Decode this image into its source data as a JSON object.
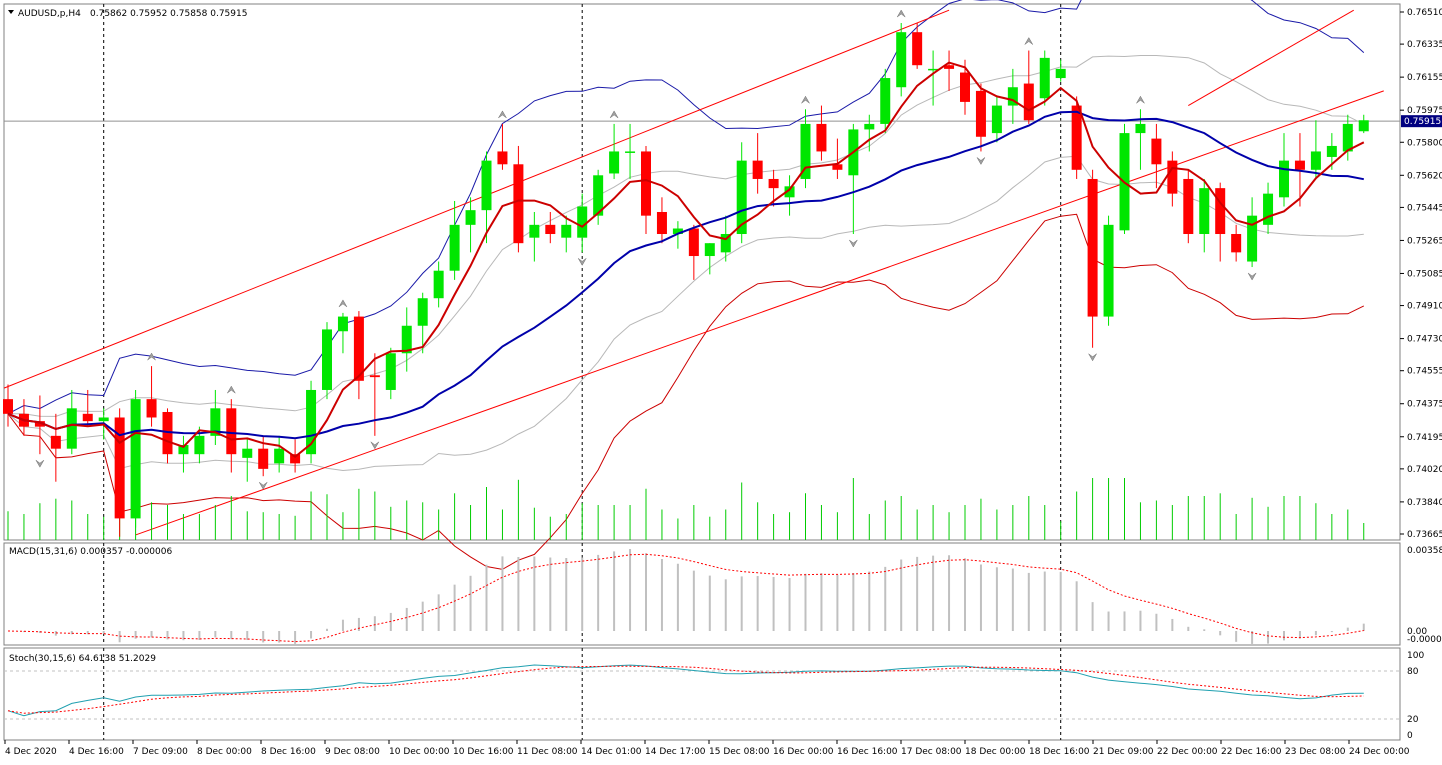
{
  "main_label": {
    "symbol": "AUDUSD,p,H4",
    "ohlc": "0.75862 0.75952 0.75858 0.75915"
  },
  "macd_label": "MACD(15,31,6) 0.000357 -0.000006",
  "stoch_label": "Stoch(30,15,6) 64.6138 51.2029",
  "price_axis": [
    "0.76510",
    "0.76335",
    "0.76155",
    "0.75975",
    "0.75800",
    "0.75620",
    "0.75445",
    "0.75265",
    "0.75085",
    "0.74910",
    "0.74730",
    "0.74555",
    "0.74375",
    "0.74195",
    "0.74020",
    "0.73840",
    "0.73665"
  ],
  "current_price": "0.75915",
  "macd_axis": [
    "0.003587",
    "0.00",
    "-0.000059"
  ],
  "stoch_axis": [
    "100",
    "80",
    "20",
    "0"
  ],
  "time_axis": [
    "4 Dec 2020",
    "4 Dec 16:00",
    "7 Dec 09:00",
    "8 Dec 00:00",
    "8 Dec 16:00",
    "9 Dec 08:00",
    "10 Dec 00:00",
    "10 Dec 16:00",
    "11 Dec 08:00",
    "14 Dec 01:00",
    "14 Dec 17:00",
    "15 Dec 08:00",
    "16 Dec 00:00",
    "16 Dec 16:00",
    "17 Dec 08:00",
    "18 Dec 00:00",
    "18 Dec 16:00",
    "21 Dec 09:00",
    "22 Dec 00:00",
    "22 Dec 16:00",
    "23 Dec 08:00",
    "24 Dec 00:00"
  ],
  "colors": {
    "bull": "#00e600",
    "bear": "#ff0000",
    "ma_fast": "#cc0000",
    "ma_slow": "#0000aa",
    "bb_upper": "#1a1aa8",
    "bb_lower": "#cc0000",
    "bb_inner": "#b8b8b8",
    "channel": "#ff0000",
    "volume": "#00cc00",
    "macd_hist": "#c0c0c0",
    "macd_signal": "#ff0000",
    "stoch_main": "#20a0b0",
    "stoch_signal": "#ff0000"
  },
  "chart_data": {
    "type": "candlestick",
    "symbol": "AUDUSD,p",
    "timeframe": "H4",
    "price_range": [
      0.73665,
      0.7651
    ],
    "candles": [
      {
        "o": 0.744,
        "h": 0.7448,
        "l": 0.7425,
        "c": 0.7432
      },
      {
        "o": 0.7432,
        "h": 0.744,
        "l": 0.742,
        "c": 0.7425
      },
      {
        "o": 0.7428,
        "h": 0.7442,
        "l": 0.741,
        "c": 0.7425
      },
      {
        "o": 0.742,
        "h": 0.7432,
        "l": 0.7395,
        "c": 0.7413
      },
      {
        "o": 0.7413,
        "h": 0.7445,
        "l": 0.741,
        "c": 0.7435
      },
      {
        "o": 0.7432,
        "h": 0.7445,
        "l": 0.7425,
        "c": 0.7428
      },
      {
        "o": 0.7428,
        "h": 0.7435,
        "l": 0.7418,
        "c": 0.743
      },
      {
        "o": 0.743,
        "h": 0.7435,
        "l": 0.7365,
        "c": 0.7375
      },
      {
        "o": 0.7375,
        "h": 0.7445,
        "l": 0.737,
        "c": 0.744
      },
      {
        "o": 0.744,
        "h": 0.7458,
        "l": 0.7425,
        "c": 0.743
      },
      {
        "o": 0.7433,
        "h": 0.7435,
        "l": 0.7405,
        "c": 0.741
      },
      {
        "o": 0.741,
        "h": 0.742,
        "l": 0.74,
        "c": 0.7415
      },
      {
        "o": 0.741,
        "h": 0.7425,
        "l": 0.7405,
        "c": 0.742
      },
      {
        "o": 0.742,
        "h": 0.7445,
        "l": 0.7415,
        "c": 0.7435
      },
      {
        "o": 0.7435,
        "h": 0.744,
        "l": 0.74,
        "c": 0.741
      },
      {
        "o": 0.7408,
        "h": 0.7418,
        "l": 0.7395,
        "c": 0.7413
      },
      {
        "o": 0.7413,
        "h": 0.742,
        "l": 0.7398,
        "c": 0.7402
      },
      {
        "o": 0.7405,
        "h": 0.742,
        "l": 0.74,
        "c": 0.7413
      },
      {
        "o": 0.741,
        "h": 0.7418,
        "l": 0.74,
        "c": 0.7405
      },
      {
        "o": 0.741,
        "h": 0.745,
        "l": 0.7405,
        "c": 0.7445
      },
      {
        "o": 0.7445,
        "h": 0.7482,
        "l": 0.744,
        "c": 0.7478
      },
      {
        "o": 0.7477,
        "h": 0.7487,
        "l": 0.7465,
        "c": 0.7485
      },
      {
        "o": 0.7485,
        "h": 0.7488,
        "l": 0.744,
        "c": 0.745
      },
      {
        "o": 0.7453,
        "h": 0.7465,
        "l": 0.742,
        "c": 0.7452
      },
      {
        "o": 0.7445,
        "h": 0.7468,
        "l": 0.744,
        "c": 0.7465
      },
      {
        "o": 0.7465,
        "h": 0.749,
        "l": 0.7455,
        "c": 0.748
      },
      {
        "o": 0.748,
        "h": 0.7498,
        "l": 0.7465,
        "c": 0.7495
      },
      {
        "o": 0.7495,
        "h": 0.7515,
        "l": 0.749,
        "c": 0.751
      },
      {
        "o": 0.751,
        "h": 0.7548,
        "l": 0.7505,
        "c": 0.7535
      },
      {
        "o": 0.7535,
        "h": 0.755,
        "l": 0.752,
        "c": 0.7543
      },
      {
        "o": 0.7543,
        "h": 0.7575,
        "l": 0.7525,
        "c": 0.757
      },
      {
        "o": 0.7575,
        "h": 0.759,
        "l": 0.7565,
        "c": 0.7568
      },
      {
        "o": 0.7568,
        "h": 0.7578,
        "l": 0.752,
        "c": 0.7525
      },
      {
        "o": 0.7528,
        "h": 0.7542,
        "l": 0.7515,
        "c": 0.7535
      },
      {
        "o": 0.7535,
        "h": 0.7542,
        "l": 0.7525,
        "c": 0.753
      },
      {
        "o": 0.7528,
        "h": 0.754,
        "l": 0.752,
        "c": 0.7535
      },
      {
        "o": 0.7528,
        "h": 0.7552,
        "l": 0.752,
        "c": 0.7545
      },
      {
        "o": 0.754,
        "h": 0.7565,
        "l": 0.7535,
        "c": 0.7562
      },
      {
        "o": 0.7563,
        "h": 0.759,
        "l": 0.756,
        "c": 0.7575
      },
      {
        "o": 0.7575,
        "h": 0.759,
        "l": 0.756,
        "c": 0.7575
      },
      {
        "o": 0.7575,
        "h": 0.7578,
        "l": 0.753,
        "c": 0.754
      },
      {
        "o": 0.7542,
        "h": 0.755,
        "l": 0.7525,
        "c": 0.753
      },
      {
        "o": 0.753,
        "h": 0.7537,
        "l": 0.7522,
        "c": 0.7533
      },
      {
        "o": 0.7533,
        "h": 0.7535,
        "l": 0.7505,
        "c": 0.7518
      },
      {
        "o": 0.7518,
        "h": 0.7525,
        "l": 0.7508,
        "c": 0.7525
      },
      {
        "o": 0.752,
        "h": 0.754,
        "l": 0.7515,
        "c": 0.753
      },
      {
        "o": 0.753,
        "h": 0.758,
        "l": 0.7525,
        "c": 0.757
      },
      {
        "o": 0.757,
        "h": 0.7585,
        "l": 0.7552,
        "c": 0.756
      },
      {
        "o": 0.756,
        "h": 0.7565,
        "l": 0.7545,
        "c": 0.7555
      },
      {
        "o": 0.755,
        "h": 0.7562,
        "l": 0.754,
        "c": 0.7556
      },
      {
        "o": 0.756,
        "h": 0.7598,
        "l": 0.7555,
        "c": 0.759
      },
      {
        "o": 0.759,
        "h": 0.76,
        "l": 0.757,
        "c": 0.7575
      },
      {
        "o": 0.7568,
        "h": 0.7582,
        "l": 0.756,
        "c": 0.7565
      },
      {
        "o": 0.7562,
        "h": 0.759,
        "l": 0.753,
        "c": 0.7587
      },
      {
        "o": 0.7587,
        "h": 0.7595,
        "l": 0.7575,
        "c": 0.759
      },
      {
        "o": 0.759,
        "h": 0.762,
        "l": 0.7585,
        "c": 0.7615
      },
      {
        "o": 0.761,
        "h": 0.7645,
        "l": 0.7605,
        "c": 0.764
      },
      {
        "o": 0.764,
        "h": 0.7645,
        "l": 0.762,
        "c": 0.7622
      },
      {
        "o": 0.762,
        "h": 0.763,
        "l": 0.76,
        "c": 0.762
      },
      {
        "o": 0.7622,
        "h": 0.763,
        "l": 0.7608,
        "c": 0.762
      },
      {
        "o": 0.7618,
        "h": 0.7625,
        "l": 0.7595,
        "c": 0.7602
      },
      {
        "o": 0.7608,
        "h": 0.7612,
        "l": 0.7575,
        "c": 0.7583
      },
      {
        "o": 0.7585,
        "h": 0.7605,
        "l": 0.758,
        "c": 0.76
      },
      {
        "o": 0.76,
        "h": 0.762,
        "l": 0.759,
        "c": 0.761
      },
      {
        "o": 0.7612,
        "h": 0.763,
        "l": 0.759,
        "c": 0.7592
      },
      {
        "o": 0.7604,
        "h": 0.763,
        "l": 0.76,
        "c": 0.7626
      },
      {
        "o": 0.7615,
        "h": 0.7625,
        "l": 0.7613,
        "c": 0.762
      },
      {
        "o": 0.76,
        "h": 0.7605,
        "l": 0.756,
        "c": 0.7565
      },
      {
        "o": 0.756,
        "h": 0.7565,
        "l": 0.7468,
        "c": 0.7485
      },
      {
        "o": 0.7485,
        "h": 0.754,
        "l": 0.748,
        "c": 0.7535
      },
      {
        "o": 0.7532,
        "h": 0.759,
        "l": 0.753,
        "c": 0.7585
      },
      {
        "o": 0.7585,
        "h": 0.7598,
        "l": 0.7565,
        "c": 0.759
      },
      {
        "o": 0.7582,
        "h": 0.759,
        "l": 0.7555,
        "c": 0.7568
      },
      {
        "o": 0.757,
        "h": 0.7575,
        "l": 0.7545,
        "c": 0.7552
      },
      {
        "o": 0.756,
        "h": 0.7565,
        "l": 0.7525,
        "c": 0.753
      },
      {
        "o": 0.753,
        "h": 0.756,
        "l": 0.752,
        "c": 0.7555
      },
      {
        "o": 0.7555,
        "h": 0.7558,
        "l": 0.7515,
        "c": 0.753
      },
      {
        "o": 0.753,
        "h": 0.7535,
        "l": 0.7515,
        "c": 0.752
      },
      {
        "o": 0.7515,
        "h": 0.755,
        "l": 0.7512,
        "c": 0.754
      },
      {
        "o": 0.7535,
        "h": 0.7558,
        "l": 0.753,
        "c": 0.7552
      },
      {
        "o": 0.755,
        "h": 0.7585,
        "l": 0.7545,
        "c": 0.757
      },
      {
        "o": 0.757,
        "h": 0.7585,
        "l": 0.7545,
        "c": 0.7565
      },
      {
        "o": 0.7565,
        "h": 0.7592,
        "l": 0.756,
        "c": 0.7575
      },
      {
        "o": 0.7572,
        "h": 0.7585,
        "l": 0.7565,
        "c": 0.7578
      },
      {
        "o": 0.7575,
        "h": 0.7595,
        "l": 0.757,
        "c": 0.759
      },
      {
        "o": 0.7586,
        "h": 0.7595,
        "l": 0.7585,
        "c": 0.7592
      }
    ],
    "title": "AUDUSD,p,H4",
    "legend": [
      "MACD(15,31,6)",
      "Stoch(30,15,6)"
    ]
  }
}
